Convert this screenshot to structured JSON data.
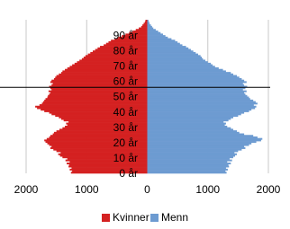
{
  "chart_data": {
    "type": "pyramid",
    "yticks": [
      {
        "value": 0,
        "label": "0 år"
      },
      {
        "value": 10,
        "label": "10 år"
      },
      {
        "value": 20,
        "label": "20 år"
      },
      {
        "value": 30,
        "label": "30 år"
      },
      {
        "value": 40,
        "label": "40 år"
      },
      {
        "value": 50,
        "label": "50 år"
      },
      {
        "value": 60,
        "label": "60 år"
      },
      {
        "value": 70,
        "label": "70 år"
      },
      {
        "value": 80,
        "label": "80 år"
      },
      {
        "value": 90,
        "label": "90 år"
      }
    ],
    "ylim": [
      0,
      100
    ],
    "xlim": [
      -2000,
      2000
    ],
    "xticks": [
      {
        "value": -2000,
        "label": "2000"
      },
      {
        "value": -1000,
        "label": "1000"
      },
      0,
      1000,
      2000
    ],
    "grid": true,
    "hline": 56,
    "series": [
      {
        "name": "Kvinner",
        "color": "#d42121",
        "values": [
          -1260,
          -1240,
          -1280,
          -1250,
          -1300,
          -1290,
          -1330,
          -1280,
          -1350,
          -1320,
          -1400,
          -1440,
          -1470,
          -1430,
          -1500,
          -1550,
          -1600,
          -1580,
          -1620,
          -1650,
          -1680,
          -1700,
          -1660,
          -1620,
          -1600,
          -1560,
          -1540,
          -1500,
          -1450,
          -1400,
          -1360,
          -1320,
          -1340,
          -1300,
          -1380,
          -1420,
          -1460,
          -1520,
          -1580,
          -1620,
          -1700,
          -1760,
          -1820,
          -1850,
          -1780,
          -1740,
          -1720,
          -1700,
          -1680,
          -1650,
          -1640,
          -1620,
          -1600,
          -1630,
          -1580,
          -1600,
          -1620,
          -1580,
          -1560,
          -1600,
          -1580,
          -1540,
          -1520,
          -1500,
          -1460,
          -1420,
          -1400,
          -1360,
          -1320,
          -1280,
          -1240,
          -1200,
          -1160,
          -1120,
          -1080,
          -1050,
          -1020,
          -980,
          -940,
          -900,
          -860,
          -820,
          -780,
          -720,
          -680,
          -640,
          -600,
          -540,
          -480,
          -420,
          -360,
          -300,
          -240,
          -190,
          -140,
          -100,
          -80,
          -60,
          -40,
          -30
        ]
      },
      {
        "name": "Menn",
        "color": "#6d9bd1",
        "values": [
          1310,
          1290,
          1330,
          1300,
          1350,
          1340,
          1380,
          1320,
          1400,
          1360,
          1420,
          1450,
          1480,
          1440,
          1500,
          1560,
          1620,
          1600,
          1680,
          1720,
          1800,
          1880,
          1900,
          1820,
          1750,
          1600,
          1520,
          1480,
          1420,
          1380,
          1320,
          1280,
          1300,
          1260,
          1340,
          1380,
          1420,
          1500,
          1550,
          1600,
          1680,
          1720,
          1780,
          1800,
          1760,
          1820,
          1790,
          1750,
          1700,
          1680,
          1650,
          1620,
          1600,
          1640,
          1580,
          1620,
          1650,
          1600,
          1580,
          1640,
          1600,
          1560,
          1520,
          1480,
          1420,
          1380,
          1300,
          1250,
          1180,
          1120,
          1080,
          1050,
          1000,
          960,
          920,
          900,
          880,
          840,
          800,
          760,
          720,
          680,
          640,
          580,
          540,
          500,
          460,
          400,
          340,
          300,
          260,
          220,
          180,
          140,
          100,
          80,
          60,
          40,
          30,
          20
        ]
      }
    ]
  }
}
